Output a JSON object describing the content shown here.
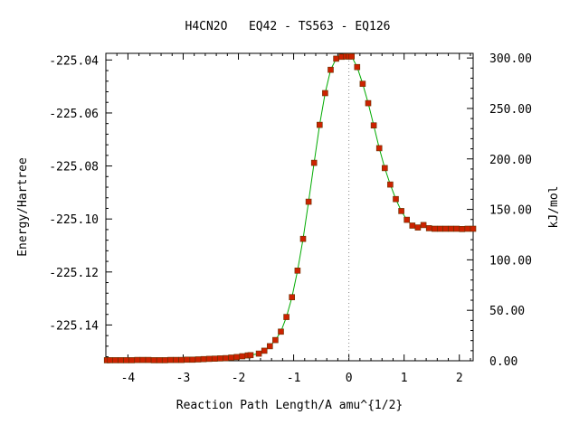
{
  "chart_data": {
    "type": "line",
    "title": "H4CN2O   EQ42 - TS563 - EQ126",
    "xlabel": "Reaction Path Length/A amu^{1/2}",
    "ylabel": "Energy/Hartree",
    "y2label": "kJ/mol",
    "xlim": [
      -4.4,
      2.25
    ],
    "ylim": [
      -225.1535,
      -225.0375
    ],
    "y2lim": [
      0,
      304.6
    ],
    "x_ticks": [
      -4,
      -3,
      -2,
      -1,
      0,
      1,
      2
    ],
    "x_tick_labels": [
      "-4",
      "-3",
      "-2",
      "-1",
      "0",
      "1",
      "2"
    ],
    "y_ticks": [
      -225.04,
      -225.06,
      -225.08,
      -225.1,
      -225.12,
      -225.14
    ],
    "y_tick_labels": [
      "-225.04",
      "-225.06",
      "-225.08",
      "-225.10",
      "-225.12",
      "-225.14"
    ],
    "y2_ticks": [
      300,
      250,
      200,
      150,
      100,
      50,
      0
    ],
    "y2_tick_labels": [
      "300.00",
      "250.00",
      "200.00",
      "150.00",
      "100.00",
      "50.00",
      "0.00"
    ],
    "ts_marker_x": 0,
    "line_color": "#00aa00",
    "marker_color": "#cc2200",
    "marker_edge_color": "#663300",
    "ts_line_color": "#888888",
    "series": [
      {
        "x": [
          -4.38,
          -4.33,
          -4.23,
          -4.13,
          -4.03,
          -3.93,
          -3.83,
          -3.73,
          -3.63,
          -3.53,
          -3.43,
          -3.33,
          -3.23,
          -3.13,
          -3.03,
          -2.93,
          -2.83,
          -2.73,
          -2.63,
          -2.53,
          -2.43,
          -2.33,
          -2.23,
          -2.13,
          -2.03,
          -1.93,
          -1.83,
          -1.78,
          -1.63,
          -1.53,
          -1.43,
          -1.33,
          -1.23,
          -1.13,
          -1.03,
          -0.93,
          -0.83,
          -0.73,
          -0.63,
          -0.53,
          -0.43,
          -0.33,
          -0.23,
          -0.13,
          -0.05,
          0.0,
          0.05,
          0.15,
          0.25,
          0.35,
          0.45,
          0.55,
          0.65,
          0.75,
          0.85,
          0.95,
          1.05,
          1.15,
          1.25,
          1.35,
          1.45,
          1.55,
          1.65,
          1.75,
          1.85,
          1.95,
          2.05,
          2.15,
          2.25
        ],
        "y": [
          -225.1533,
          -225.1533,
          -225.1533,
          -225.1533,
          -225.1533,
          -225.1533,
          -225.1532,
          -225.1532,
          -225.1532,
          -225.1533,
          -225.1533,
          -225.1533,
          -225.1532,
          -225.1532,
          -225.1532,
          -225.1531,
          -225.1531,
          -225.153,
          -225.1529,
          -225.1528,
          -225.1527,
          -225.1526,
          -225.1525,
          -225.1523,
          -225.1521,
          -225.1518,
          -225.1515,
          -225.1514,
          -225.1508,
          -225.1497,
          -225.148,
          -225.1457,
          -225.1425,
          -225.137,
          -225.1295,
          -225.1195,
          -225.1075,
          -225.0935,
          -225.0788,
          -225.0645,
          -225.0525,
          -225.0437,
          -225.0395,
          -225.0388,
          -225.0387,
          -225.0387,
          -225.0387,
          -225.0427,
          -225.049,
          -225.0563,
          -225.0647,
          -225.0733,
          -225.0808,
          -225.087,
          -225.0925,
          -225.097,
          -225.1003,
          -225.1025,
          -225.1032,
          -225.1023,
          -225.1035,
          -225.1037,
          -225.1037,
          -225.1037,
          -225.1037,
          -225.1037,
          -225.1038,
          -225.1037,
          -225.1037
        ]
      }
    ]
  }
}
